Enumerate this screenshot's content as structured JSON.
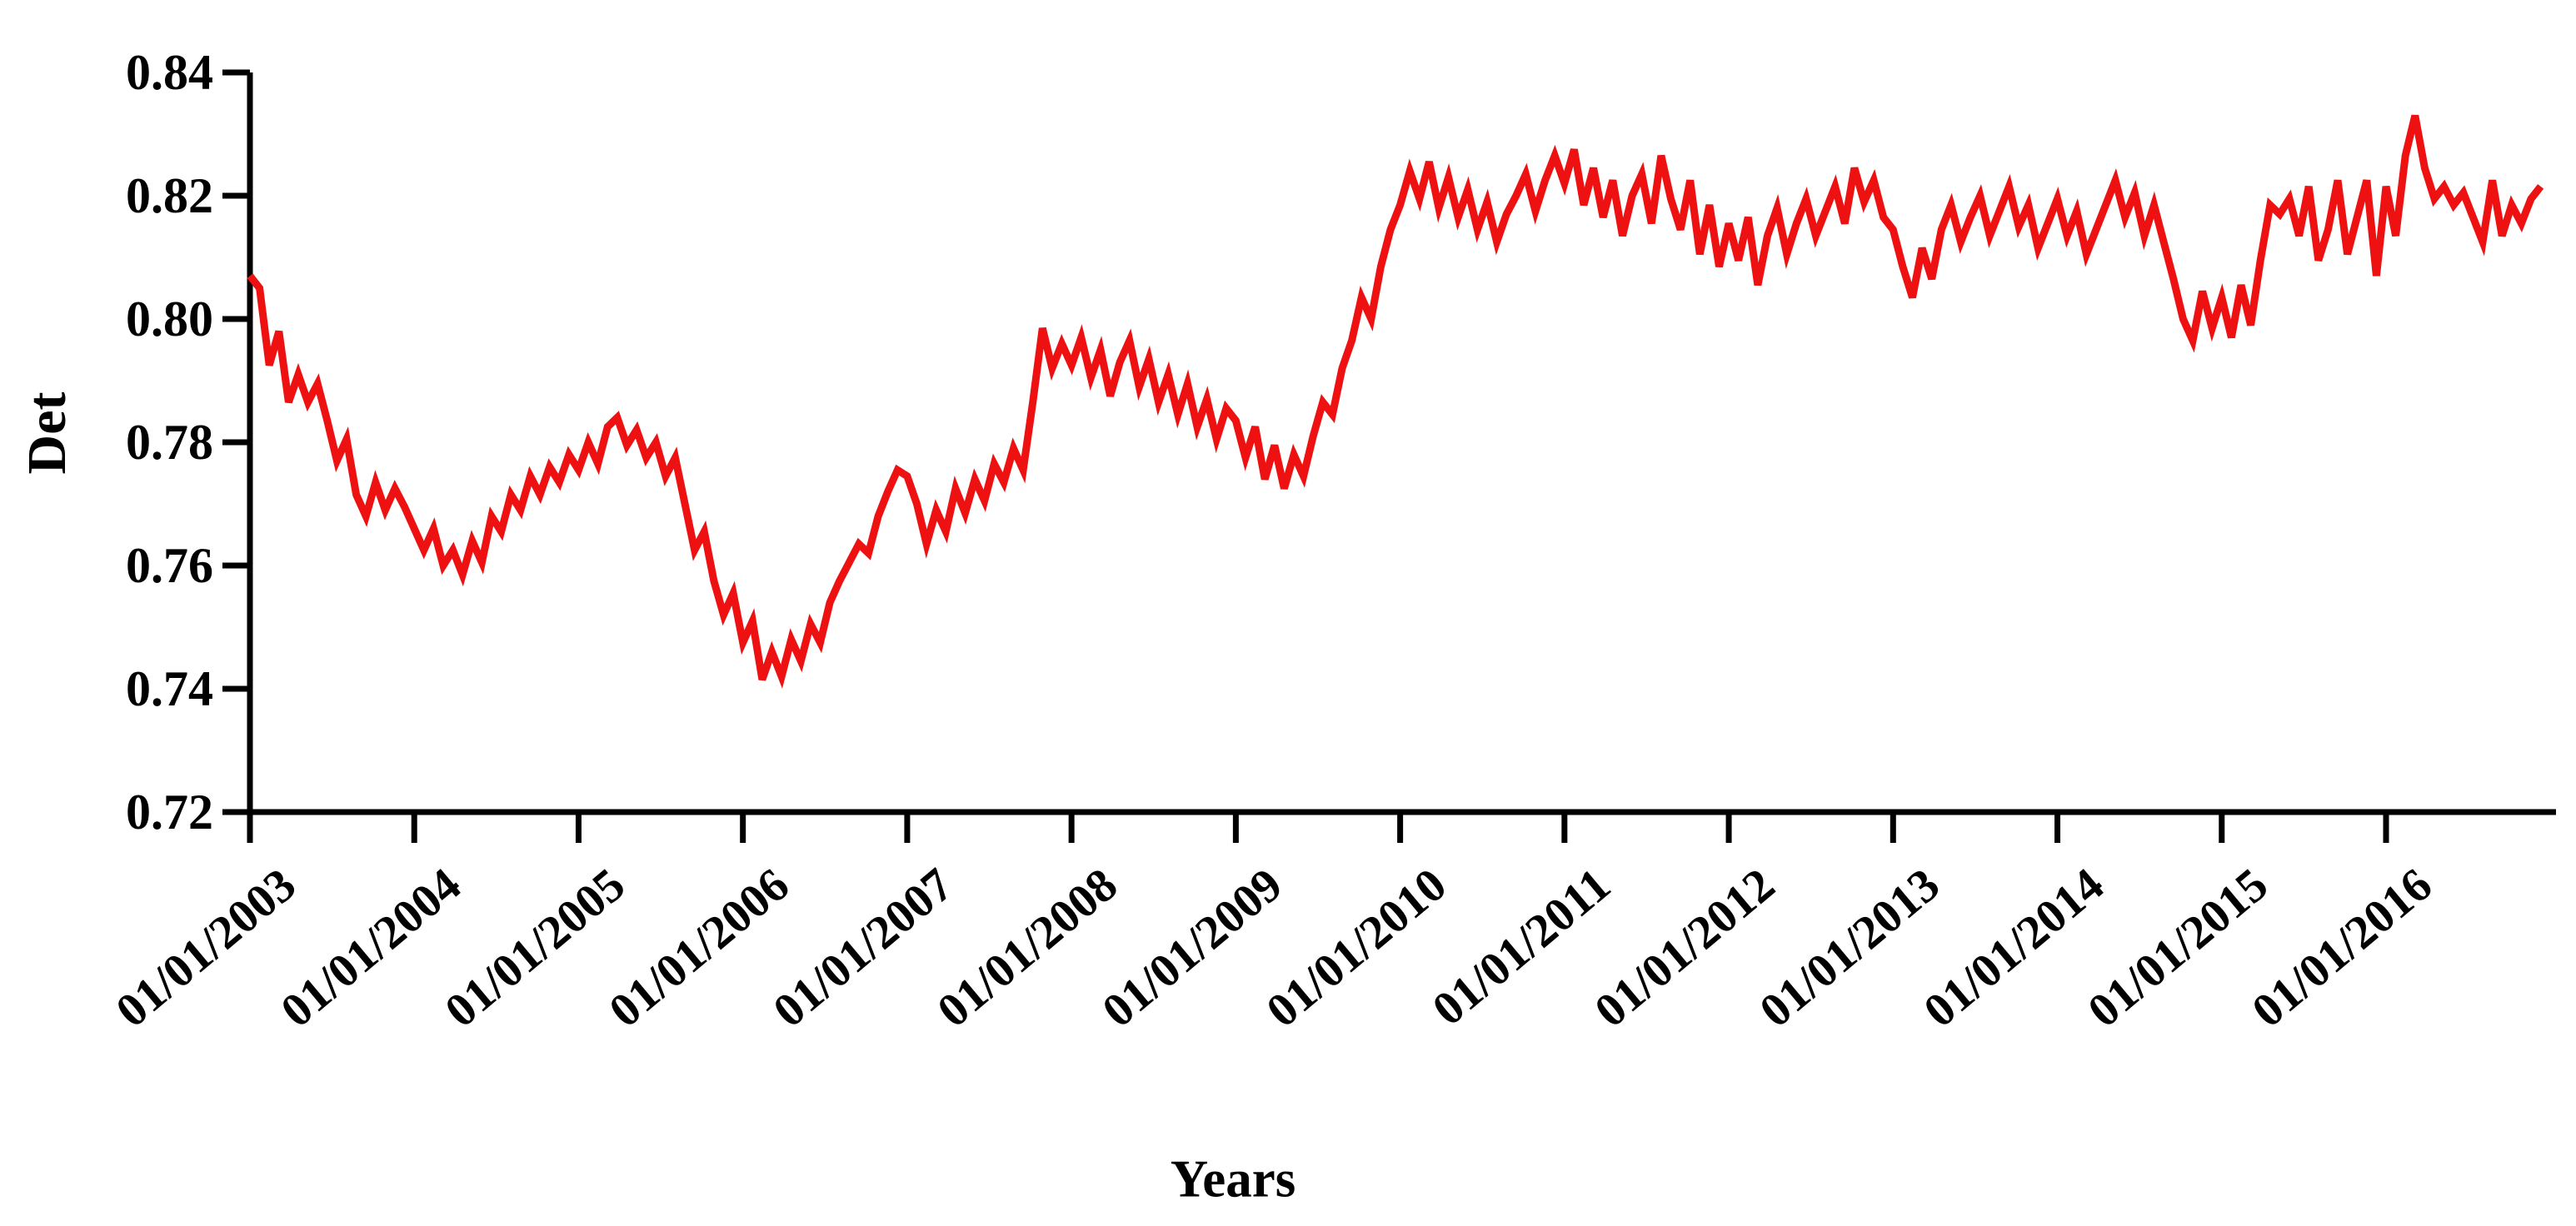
{
  "page": {
    "background": "#ffffff"
  },
  "y_axis": {
    "title": "Det",
    "min": 0.72,
    "max": 0.84,
    "tick_step": 0.02,
    "tick_labels": [
      "0.84",
      "0.82",
      "0.80",
      "0.78",
      "0.76",
      "0.74",
      "0.72"
    ],
    "tick_values": [
      0.84,
      0.82,
      0.8,
      0.78,
      0.76,
      0.74,
      0.72
    ]
  },
  "x_axis": {
    "title": "Years",
    "tick_labels": [
      "01/01/2003",
      "01/01/2004",
      "01/01/2005",
      "01/01/2006",
      "01/01/2007",
      "01/01/2008",
      "01/01/2009",
      "01/01/2010",
      "01/01/2011",
      "01/01/2012",
      "01/01/2013",
      "01/01/2014",
      "01/01/2015",
      "01/01/2016"
    ]
  },
  "chart_data": {
    "type": "line",
    "title": "",
    "xlabel": "Years",
    "ylabel": "Det",
    "ylim": [
      0.72,
      0.84
    ],
    "xlim_years": [
      2003.0,
      2017.05
    ],
    "grid": false,
    "legend_position": "none",
    "axis_color": "#000000",
    "x_tick_labels": [
      "01/01/2003",
      "01/01/2004",
      "01/01/2005",
      "01/01/2006",
      "01/01/2007",
      "01/01/2008",
      "01/01/2009",
      "01/01/2010",
      "01/01/2011",
      "01/01/2012",
      "01/01/2013",
      "01/01/2014",
      "01/01/2015",
      "01/01/2016"
    ],
    "series": [
      {
        "name": "Det",
        "color": "#ee1111",
        "stroke_width": 9,
        "start_year": 2003,
        "samples_per_year": 17,
        "values": [
          0.807,
          0.805,
          0.7925,
          0.798,
          0.7865,
          0.791,
          0.7865,
          0.7895,
          0.7835,
          0.777,
          0.7805,
          0.7715,
          0.768,
          0.7735,
          0.769,
          0.7725,
          0.7695,
          0.766,
          0.7625,
          0.766,
          0.76,
          0.7625,
          0.7585,
          0.764,
          0.7605,
          0.768,
          0.7655,
          0.7715,
          0.769,
          0.7745,
          0.7715,
          0.776,
          0.7735,
          0.778,
          0.7755,
          0.78,
          0.7765,
          0.7825,
          0.784,
          0.7795,
          0.782,
          0.7775,
          0.78,
          0.7745,
          0.7775,
          0.77,
          0.7625,
          0.7655,
          0.7575,
          0.752,
          0.7555,
          0.7475,
          0.751,
          0.7415,
          0.746,
          0.742,
          0.748,
          0.7445,
          0.7505,
          0.7475,
          0.754,
          0.7575,
          0.7605,
          0.7635,
          0.762,
          0.768,
          0.772,
          0.7755,
          0.7745,
          0.77,
          0.7635,
          0.769,
          0.7655,
          0.7725,
          0.7685,
          0.774,
          0.7705,
          0.7765,
          0.7735,
          0.779,
          0.7755,
          0.7865,
          0.7985,
          0.792,
          0.796,
          0.7925,
          0.797,
          0.7905,
          0.795,
          0.7875,
          0.793,
          0.7965,
          0.789,
          0.7935,
          0.7865,
          0.791,
          0.7845,
          0.7895,
          0.7825,
          0.787,
          0.7805,
          0.7855,
          0.7835,
          0.7775,
          0.7825,
          0.774,
          0.7795,
          0.7725,
          0.778,
          0.7745,
          0.781,
          0.7865,
          0.7845,
          0.792,
          0.7965,
          0.8035,
          0.8,
          0.8085,
          0.8145,
          0.8185,
          0.824,
          0.8195,
          0.8255,
          0.818,
          0.823,
          0.8165,
          0.821,
          0.8145,
          0.819,
          0.8125,
          0.817,
          0.82,
          0.8235,
          0.8175,
          0.8225,
          0.8265,
          0.822,
          0.8275,
          0.8185,
          0.8245,
          0.8165,
          0.8225,
          0.8135,
          0.82,
          0.8235,
          0.8155,
          0.8265,
          0.8195,
          0.8145,
          0.8225,
          0.8105,
          0.8185,
          0.8085,
          0.8155,
          0.8095,
          0.8165,
          0.8055,
          0.8135,
          0.818,
          0.8105,
          0.8155,
          0.8195,
          0.8135,
          0.8175,
          0.8215,
          0.8155,
          0.8245,
          0.819,
          0.8225,
          0.8165,
          0.8145,
          0.8085,
          0.8035,
          0.8115,
          0.8065,
          0.8145,
          0.8185,
          0.8125,
          0.8165,
          0.82,
          0.8135,
          0.8175,
          0.8215,
          0.815,
          0.8185,
          0.8115,
          0.8155,
          0.8195,
          0.8135,
          0.8175,
          0.8105,
          0.8145,
          0.8185,
          0.8225,
          0.8165,
          0.8205,
          0.8135,
          0.8185,
          0.8125,
          0.8065,
          0.8,
          0.7965,
          0.8045,
          0.7985,
          0.8035,
          0.797,
          0.8055,
          0.799,
          0.8095,
          0.8185,
          0.817,
          0.8195,
          0.8135,
          0.8215,
          0.8095,
          0.8145,
          0.8225,
          0.8105,
          0.8165,
          0.8225,
          0.807,
          0.8215,
          0.8135,
          0.8265,
          0.833,
          0.8245,
          0.8195,
          0.8215,
          0.8185,
          0.8205,
          0.8165,
          0.8125,
          0.8225,
          0.8135,
          0.8185,
          0.8155,
          0.8195,
          0.8215
        ]
      }
    ]
  }
}
